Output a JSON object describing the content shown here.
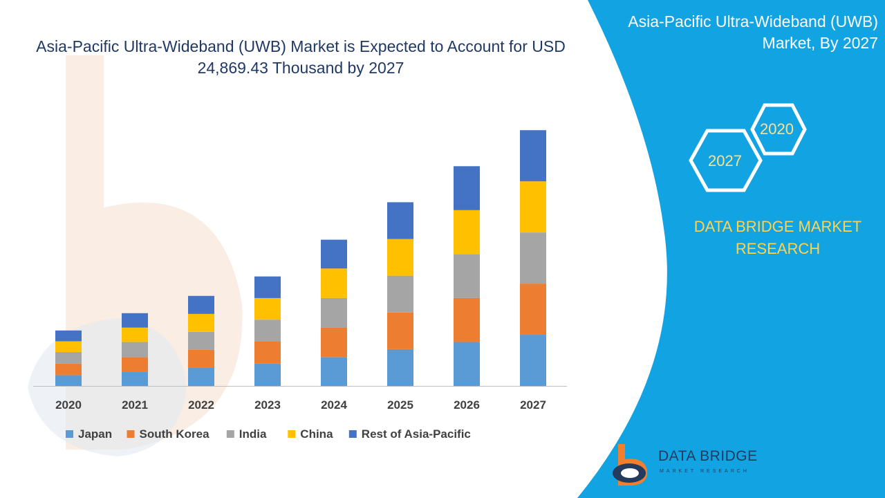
{
  "title": "Asia-Pacific Ultra-Wideband (UWB) Market is Expected to Account for USD 24,869.43 Thousand by 2027",
  "panel": {
    "title": "Asia-Pacific Ultra-Wideband (UWB) Market, By 2027",
    "hex_top": "2020",
    "hex_bottom": "2027",
    "brand": "DATA BRIDGE MARKET RESEARCH"
  },
  "logo": {
    "name": "DATA BRIDGE",
    "sub": "MARKET RESEARCH"
  },
  "colors": {
    "Japan": "#5b9bd5",
    "South Korea": "#ed7d31",
    "India": "#a5a5a5",
    "China": "#ffc000",
    "Rest of Asia-Pacific": "#4472c4",
    "panel": "#12a3e3",
    "title": "#1f3864"
  },
  "chart_data": {
    "type": "bar",
    "stacked": true,
    "title": "Asia-Pacific Ultra-Wideband (UWB) Market is Expected to Account for USD 24,869.43 Thousand by 2027",
    "categories": [
      "2020",
      "2021",
      "2022",
      "2023",
      "2024",
      "2025",
      "2026",
      "2027"
    ],
    "series": [
      {
        "name": "Japan",
        "values": [
          15,
          20,
          25,
          31,
          40,
          51,
          61,
          71
        ]
      },
      {
        "name": "South Korea",
        "values": [
          16,
          20,
          25,
          31,
          41,
          51,
          61,
          71
        ]
      },
      {
        "name": "India",
        "values": [
          16,
          21,
          25,
          30,
          41,
          51,
          61,
          71
        ]
      },
      {
        "name": "China",
        "values": [
          15,
          20,
          25,
          30,
          41,
          51,
          61,
          71
        ]
      },
      {
        "name": "Rest of Asia-Pacific",
        "values": [
          15,
          20,
          25,
          30,
          40,
          51,
          61,
          71
        ]
      }
    ],
    "ylim": [
      0,
      360
    ],
    "legend": "bottom",
    "grid": false
  }
}
